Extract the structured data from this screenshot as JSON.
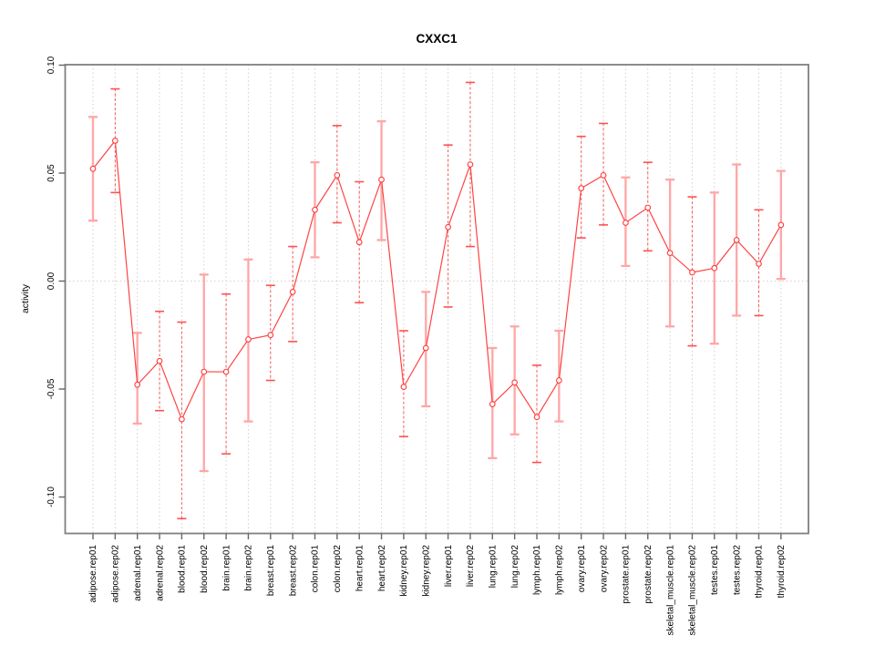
{
  "window": {
    "background": "#ffffff"
  },
  "chart_data": {
    "type": "line",
    "title": "CXXC1",
    "xlabel": "",
    "ylabel": "activity",
    "ylim": [
      -0.117,
      0.1
    ],
    "yticks": [
      0.1,
      0.05,
      0.0,
      -0.05,
      -0.1
    ],
    "ytick_labels": [
      "0.10",
      "0.05",
      "0.00",
      "-0.05",
      "-0.10"
    ],
    "legend": "none",
    "grid": {
      "vertical_dotted_per_category": true,
      "horizontal_dotted_at_zero": true
    },
    "marker": "open-circle",
    "error_bars": true,
    "categories": [
      "adipose.rep01",
      "adipose.rep02",
      "adrenal.rep01",
      "adrenal.rep02",
      "blood.rep01",
      "blood.rep02",
      "brain.rep01",
      "brain.rep02",
      "breast.rep01",
      "breast.rep02",
      "colon.rep01",
      "colon.rep02",
      "heart.rep01",
      "heart.rep02",
      "kidney.rep01",
      "kidney.rep02",
      "liver.rep01",
      "liver.rep02",
      "lung.rep01",
      "lung.rep02",
      "lymph.rep01",
      "lymph.rep02",
      "ovary.rep01",
      "ovary.rep02",
      "prostate.rep01",
      "prostate.rep02",
      "skeletal_muscle.rep01",
      "skeletal_muscle.rep02",
      "testes.rep01",
      "testes.rep02",
      "thyroid.rep01",
      "thyroid.rep02"
    ],
    "points": [
      {
        "label": "adipose.rep01",
        "value": 0.052,
        "ci_low": 0.028,
        "ci_high": 0.076,
        "stem": "solid"
      },
      {
        "label": "adipose.rep02",
        "value": 0.065,
        "ci_low": 0.041,
        "ci_high": 0.089,
        "stem": "dashed"
      },
      {
        "label": "adrenal.rep01",
        "value": -0.048,
        "ci_low": -0.066,
        "ci_high": -0.024,
        "stem": "solid"
      },
      {
        "label": "adrenal.rep02",
        "value": -0.037,
        "ci_low": -0.06,
        "ci_high": -0.014,
        "stem": "dashed"
      },
      {
        "label": "blood.rep01",
        "value": -0.064,
        "ci_low": -0.11,
        "ci_high": -0.019,
        "stem": "dashed"
      },
      {
        "label": "blood.rep02",
        "value": -0.042,
        "ci_low": -0.088,
        "ci_high": 0.003,
        "stem": "solid"
      },
      {
        "label": "brain.rep01",
        "value": -0.042,
        "ci_low": -0.08,
        "ci_high": -0.006,
        "stem": "dashed"
      },
      {
        "label": "brain.rep02",
        "value": -0.027,
        "ci_low": -0.065,
        "ci_high": 0.01,
        "stem": "solid"
      },
      {
        "label": "breast.rep01",
        "value": -0.025,
        "ci_low": -0.046,
        "ci_high": -0.002,
        "stem": "dashed"
      },
      {
        "label": "breast.rep02",
        "value": -0.005,
        "ci_low": -0.028,
        "ci_high": 0.016,
        "stem": "dashed"
      },
      {
        "label": "colon.rep01",
        "value": 0.033,
        "ci_low": 0.011,
        "ci_high": 0.055,
        "stem": "solid"
      },
      {
        "label": "colon.rep02",
        "value": 0.049,
        "ci_low": 0.027,
        "ci_high": 0.072,
        "stem": "dashed"
      },
      {
        "label": "heart.rep01",
        "value": 0.018,
        "ci_low": -0.01,
        "ci_high": 0.046,
        "stem": "dashed"
      },
      {
        "label": "heart.rep02",
        "value": 0.047,
        "ci_low": 0.019,
        "ci_high": 0.074,
        "stem": "solid"
      },
      {
        "label": "kidney.rep01",
        "value": -0.049,
        "ci_low": -0.072,
        "ci_high": -0.023,
        "stem": "dashed"
      },
      {
        "label": "kidney.rep02",
        "value": -0.031,
        "ci_low": -0.058,
        "ci_high": -0.005,
        "stem": "solid"
      },
      {
        "label": "liver.rep01",
        "value": 0.025,
        "ci_low": -0.012,
        "ci_high": 0.063,
        "stem": "dashed"
      },
      {
        "label": "liver.rep02",
        "value": 0.054,
        "ci_low": 0.016,
        "ci_high": 0.092,
        "stem": "dashed"
      },
      {
        "label": "lung.rep01",
        "value": -0.057,
        "ci_low": -0.082,
        "ci_high": -0.031,
        "stem": "solid"
      },
      {
        "label": "lung.rep02",
        "value": -0.047,
        "ci_low": -0.071,
        "ci_high": -0.021,
        "stem": "solid"
      },
      {
        "label": "lymph.rep01",
        "value": -0.063,
        "ci_low": -0.084,
        "ci_high": -0.039,
        "stem": "dashed"
      },
      {
        "label": "lymph.rep02",
        "value": -0.046,
        "ci_low": -0.065,
        "ci_high": -0.023,
        "stem": "solid"
      },
      {
        "label": "ovary.rep01",
        "value": 0.043,
        "ci_low": 0.02,
        "ci_high": 0.067,
        "stem": "dashed"
      },
      {
        "label": "ovary.rep02",
        "value": 0.049,
        "ci_low": 0.026,
        "ci_high": 0.073,
        "stem": "dashed"
      },
      {
        "label": "prostate.rep01",
        "value": 0.027,
        "ci_low": 0.007,
        "ci_high": 0.048,
        "stem": "solid"
      },
      {
        "label": "prostate.rep02",
        "value": 0.034,
        "ci_low": 0.014,
        "ci_high": 0.055,
        "stem": "dashed"
      },
      {
        "label": "skeletal_muscle.rep01",
        "value": 0.013,
        "ci_low": -0.021,
        "ci_high": 0.047,
        "stem": "solid"
      },
      {
        "label": "skeletal_muscle.rep02",
        "value": 0.004,
        "ci_low": -0.03,
        "ci_high": 0.039,
        "stem": "dashed"
      },
      {
        "label": "testes.rep01",
        "value": 0.006,
        "ci_low": -0.029,
        "ci_high": 0.041,
        "stem": "solid"
      },
      {
        "label": "testes.rep02",
        "value": 0.019,
        "ci_low": -0.016,
        "ci_high": 0.054,
        "stem": "solid"
      },
      {
        "label": "thyroid.rep01",
        "value": 0.008,
        "ci_low": -0.016,
        "ci_high": 0.033,
        "stem": "dashed"
      },
      {
        "label": "thyroid.rep02",
        "value": 0.026,
        "ci_low": 0.001,
        "ci_high": 0.051,
        "stem": "solid"
      }
    ]
  },
  "colors": {
    "series_line": "#ff4343",
    "marker_stroke": "#ff3b3b",
    "marker_fill": "#ffffff",
    "stem_solid": "#ffa6a6",
    "stem_dashed": "#ff5050",
    "grid": "#d0d0d0",
    "plot_border": "#7f7f7f",
    "tick": "#666666",
    "text": "#000000"
  }
}
